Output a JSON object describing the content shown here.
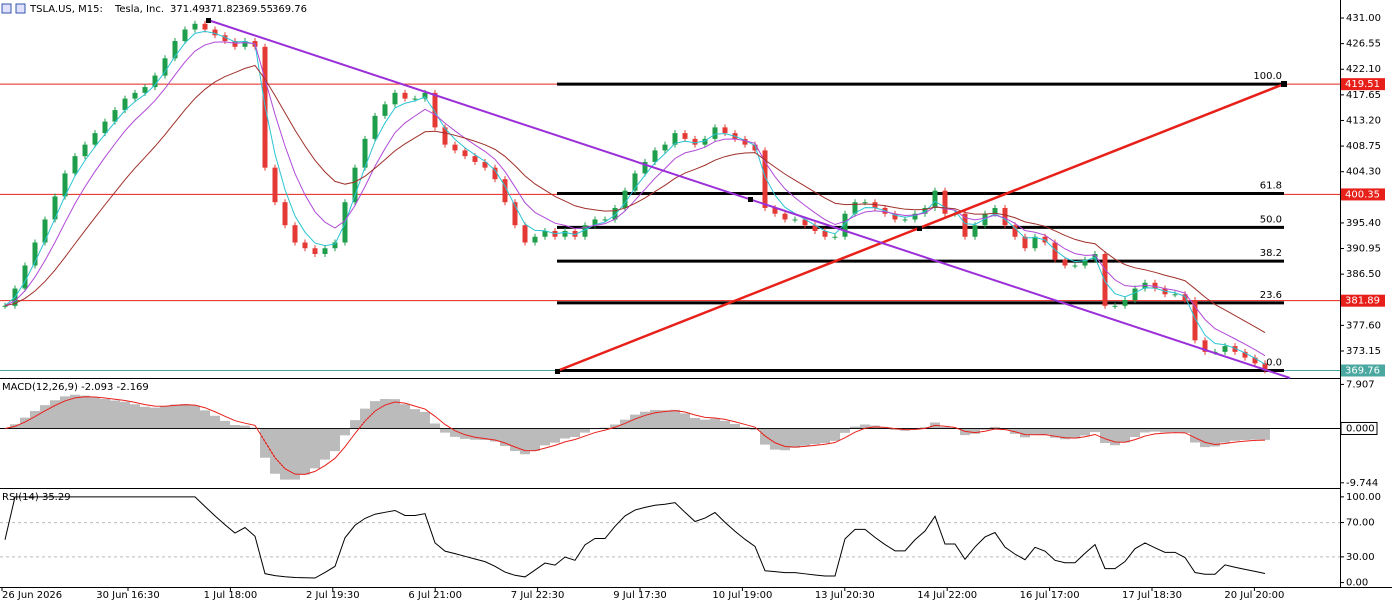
{
  "chart_data": {
    "type": "candlestick",
    "header": {
      "symbol": "TSLA.US, M15:",
      "name": "Tesla, Inc.",
      "ohlc": [
        371.49,
        371.82,
        369.55,
        369.76
      ]
    },
    "close": [
      381,
      384,
      388,
      392,
      396,
      400,
      404,
      407,
      409,
      411,
      413,
      415,
      417,
      418,
      419,
      421,
      424,
      427,
      429,
      430,
      429,
      428,
      427,
      426,
      427,
      426,
      405,
      399,
      395,
      392,
      391,
      390,
      391,
      392,
      399,
      405,
      410,
      414,
      416,
      418,
      417,
      417,
      418,
      412,
      409,
      408,
      407,
      406,
      405,
      403,
      399,
      395,
      392,
      393,
      394,
      393,
      394,
      393,
      395,
      396,
      396,
      398,
      401,
      404,
      406,
      408,
      409,
      411,
      410,
      409,
      410,
      412,
      411,
      410,
      409,
      408,
      398,
      397,
      396,
      396,
      395,
      394,
      393,
      393,
      397,
      399,
      399,
      398,
      397,
      396,
      396,
      397,
      398,
      401,
      397,
      397,
      393,
      395,
      397,
      398,
      395,
      393,
      391,
      393,
      392,
      389,
      388,
      388,
      389,
      390,
      381,
      381,
      382,
      384,
      385,
      384,
      383,
      383,
      382,
      375,
      373,
      373,
      374,
      373,
      372,
      371,
      369.76
    ],
    "up_color": "#1e9e4a",
    "down_color": "#e53935",
    "ylim": [
      368.63,
      434.13
    ],
    "yticks": [
      {
        "value": 431,
        "label": "431.00"
      },
      {
        "value": 426.55,
        "label": "426.55"
      },
      {
        "value": 422.1,
        "label": "422.10"
      },
      {
        "value": 417.65,
        "label": "417.65"
      },
      {
        "value": 413.2,
        "label": "413.20"
      },
      {
        "value": 408.75,
        "label": "408.75"
      },
      {
        "value": 404.3,
        "label": "404.30"
      },
      {
        "value": 395.4,
        "label": "395.40"
      },
      {
        "value": 390.95,
        "label": "390.95"
      },
      {
        "value": 386.5,
        "label": "386.50"
      },
      {
        "value": 377.6,
        "label": "377.60"
      },
      {
        "value": 373.15,
        "label": "373.15"
      }
    ],
    "levels": [
      419.51,
      400.35,
      381.89
    ],
    "current_price": 369.76,
    "fibonacci": [
      {
        "label": "100.0",
        "price": 419.51
      },
      {
        "label": "61.8",
        "price": 400.51
      },
      {
        "label": "50.0",
        "price": 394.63
      },
      {
        "label": "38.2",
        "price": 388.76
      },
      {
        "label": "23.6",
        "price": 381.5
      },
      {
        "label": "0.0",
        "price": 369.76
      }
    ],
    "x_labels": [
      "26 Jun 2026",
      "30 Jun 16:30",
      "1 Jul 18:00",
      "2 Jul 19:30",
      "6 Jul 21:00",
      "7 Jul 22:30",
      "9 Jul 17:30",
      "10 Jul 19:00",
      "13 Jul 20:30",
      "14 Jul 22:00",
      "16 Jul 17:00",
      "17 Jul 18:30",
      "20 Jul 20:00"
    ],
    "macd": {
      "title": "MACD(12,26,9) -2.093 -2.169",
      "ylim": [
        -10.5,
        8.7
      ],
      "yticks": [
        {
          "value": 7.907,
          "label": "7.907"
        },
        {
          "value": 0,
          "label": "0.000"
        },
        {
          "value": -9.744,
          "label": "-9.744"
        }
      ]
    },
    "rsi": {
      "title": "RSI(14) 35.29",
      "ylim": [
        -4,
        108
      ],
      "yticks": [
        {
          "value": 100,
          "label": "100.00"
        },
        {
          "value": 70,
          "label": "70.00"
        },
        {
          "value": 30,
          "label": "30.00"
        },
        {
          "value": 0,
          "label": "0.00"
        }
      ]
    }
  }
}
